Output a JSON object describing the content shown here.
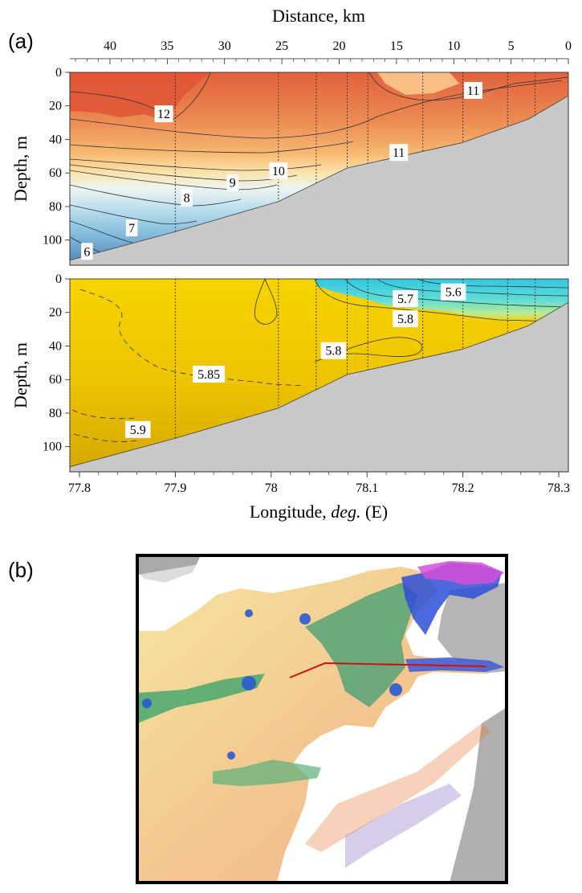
{
  "figure": {
    "panel_a_label": "(a)",
    "panel_b_label": "(b)"
  },
  "chart_data": [
    {
      "type": "heatmap",
      "panel": "(a) upper",
      "xlabel_top": "Distance, km",
      "ylabel": "Depth, m",
      "x_top_ticks": [
        "40",
        "35",
        "30",
        "25",
        "20",
        "15",
        "10",
        "5",
        "0"
      ],
      "x_top_tick_values": [
        40,
        35,
        30,
        25,
        20,
        15,
        10,
        5,
        0
      ],
      "y_ticks": [
        "0",
        "20",
        "40",
        "60",
        "80",
        "100"
      ],
      "y_tick_values": [
        0,
        20,
        40,
        60,
        80,
        100
      ],
      "ylim": [
        0,
        115
      ],
      "xlim_distance_km": [
        43.5,
        0
      ],
      "contour_labels": [
        {
          "text": "12",
          "distance_km": 35.3,
          "depth_m": 25
        },
        {
          "text": "11",
          "distance_km": 8.3,
          "depth_m": 11
        },
        {
          "text": "11",
          "distance_km": 14.8,
          "depth_m": 48
        },
        {
          "text": "10",
          "distance_km": 25.3,
          "depth_m": 59
        },
        {
          "text": "9",
          "distance_km": 29.3,
          "depth_m": 66
        },
        {
          "text": "8",
          "distance_km": 33.3,
          "depth_m": 75
        },
        {
          "text": "7",
          "distance_km": 38.1,
          "depth_m": 93
        },
        {
          "text": "6",
          "distance_km": 42.0,
          "depth_m": 107
        }
      ],
      "bottom_depth_by_distance": [
        {
          "distance_km": 43.5,
          "depth_m": 112
        },
        {
          "distance_km": 34.3,
          "depth_m": 95
        },
        {
          "distance_km": 25.3,
          "depth_m": 77
        },
        {
          "distance_km": 19.3,
          "depth_m": 57
        },
        {
          "distance_km": 9.3,
          "depth_m": 42
        },
        {
          "distance_km": 3.5,
          "depth_m": 28
        },
        {
          "distance_km": 0,
          "depth_m": 14
        }
      ],
      "station_distances_km": [
        43.5,
        34.3,
        25.3,
        22.0,
        19.3,
        17.5,
        12.7,
        9.2,
        5.3,
        2.9
      ]
    },
    {
      "type": "heatmap",
      "panel": "(a) lower",
      "xlabel": "Longitude,",
      "xlabel_italic": "deg.",
      "xlabel_tail": "(E)",
      "ylabel": "Depth, m",
      "x_ticks": [
        "77.8",
        "77.9",
        "78",
        "78.1",
        "78.2",
        "78.3"
      ],
      "x_tick_values": [
        77.8,
        77.9,
        78.0,
        78.1,
        78.2,
        78.3
      ],
      "xlim": [
        77.79,
        78.31
      ],
      "y_ticks": [
        "0",
        "20",
        "40",
        "60",
        "80",
        "100"
      ],
      "y_tick_values": [
        0,
        20,
        40,
        60,
        80,
        100
      ],
      "ylim": [
        0,
        115
      ],
      "contour_labels": [
        {
          "text": "5.6",
          "lon": 78.19,
          "depth_m": 8
        },
        {
          "text": "5.7",
          "lon": 78.14,
          "depth_m": 12
        },
        {
          "text": "5.8",
          "lon": 78.14,
          "depth_m": 24
        },
        {
          "text": "5.8",
          "lon": 78.065,
          "depth_m": 43
        },
        {
          "text": "5.85",
          "lon": 77.935,
          "depth_m": 57
        },
        {
          "text": "5.9",
          "lon": 77.861,
          "depth_m": 90
        }
      ]
    },
    {
      "type": "other",
      "panel": "(b)",
      "description_shown": "colour-coded satellite image with red transect line"
    }
  ],
  "colors": {
    "bottom": "#c8c8c8",
    "transect_line": "#cc1111",
    "salinity_base": "#f0c800",
    "salinity_fresh": "#39d4e4"
  }
}
